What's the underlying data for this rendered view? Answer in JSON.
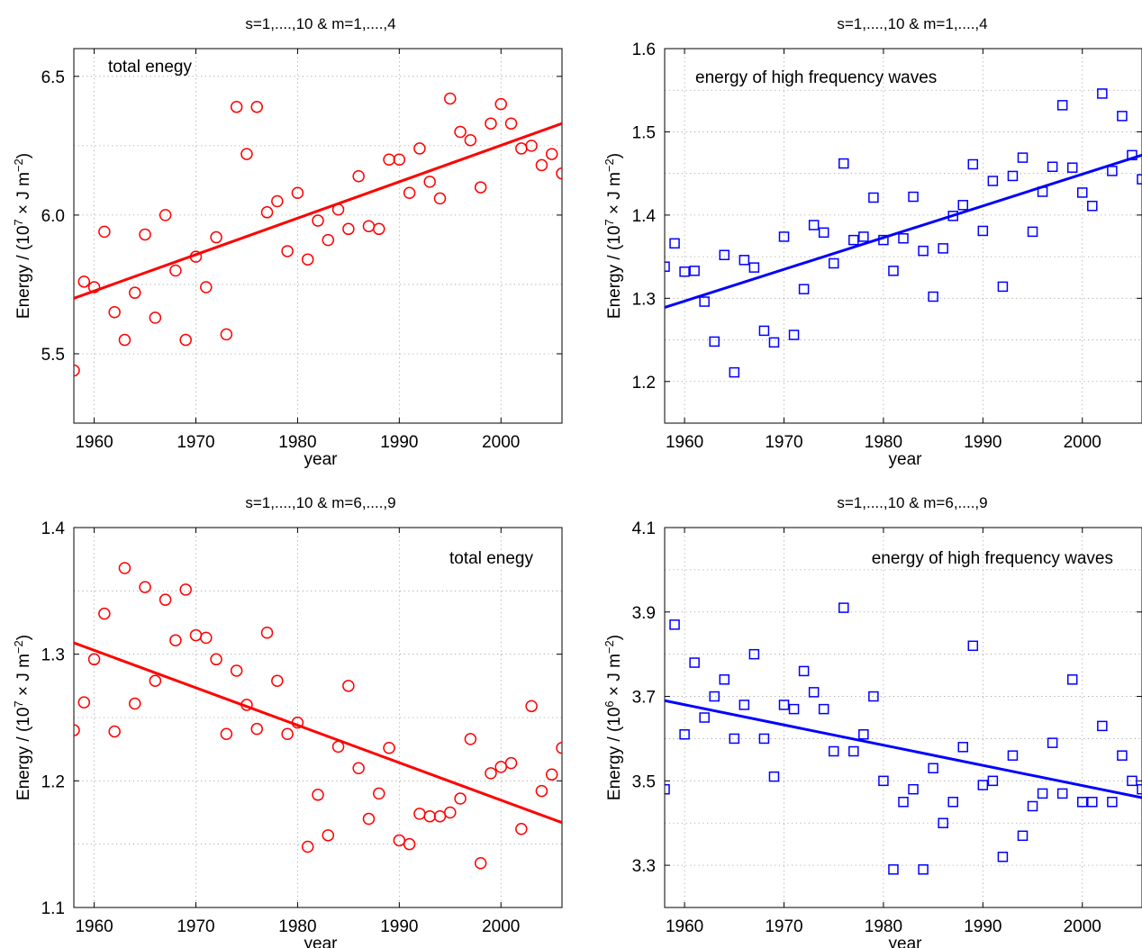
{
  "chart_data": [
    {
      "type": "scatter",
      "title": "s=1,....,10  &  m=1,....,4",
      "annotation": "total enegy",
      "xlabel": "year",
      "ylabel_prefix": "Energy / (10",
      "ylabel_exp": "7",
      "ylabel_unit": " × J m",
      "ylabel_unit_exp": "−2",
      "ylabel_suffix": ")",
      "xlim": [
        1958,
        2006
      ],
      "ylim": [
        5.25,
        6.6
      ],
      "xticks": [
        1960,
        1970,
        1980,
        1990,
        2000
      ],
      "yticks": [
        5.5,
        6.0,
        6.5
      ],
      "ytick_labels": [
        "5.5",
        "6.0",
        "6.5"
      ],
      "ygrid_minor": [
        5.75,
        6.25
      ],
      "grid": true,
      "marker": "circle",
      "color": "#ff0000",
      "annotation_anchor": "top-left",
      "x": [
        1958,
        1959,
        1960,
        1961,
        1962,
        1963,
        1964,
        1965,
        1966,
        1967,
        1968,
        1969,
        1970,
        1971,
        1972,
        1973,
        1974,
        1975,
        1976,
        1977,
        1978,
        1979,
        1980,
        1981,
        1982,
        1983,
        1984,
        1985,
        1986,
        1987,
        1988,
        1989,
        1990,
        1991,
        1992,
        1993,
        1994,
        1995,
        1996,
        1997,
        1998,
        1999,
        2000,
        2001,
        2002,
        2003,
        2004,
        2005,
        2006
      ],
      "y": [
        5.44,
        5.76,
        5.74,
        5.94,
        5.65,
        5.55,
        5.72,
        5.93,
        5.63,
        6.0,
        5.8,
        5.55,
        5.85,
        5.74,
        5.92,
        5.57,
        6.39,
        6.22,
        6.39,
        6.01,
        6.05,
        5.87,
        6.08,
        5.84,
        5.98,
        5.91,
        6.02,
        5.95,
        6.14,
        5.96,
        5.95,
        6.2,
        6.2,
        6.08,
        6.24,
        6.12,
        6.06,
        6.42,
        6.3,
        6.27,
        6.1,
        6.33,
        6.4,
        6.33,
        6.24,
        6.25,
        6.18,
        6.22,
        6.15
      ],
      "trend": {
        "x": [
          1958,
          2006
        ],
        "y": [
          5.7,
          6.33
        ]
      }
    },
    {
      "type": "scatter",
      "title": "s=1,....,10  &  m=1,....,4",
      "annotation": "energy of high frequency waves",
      "xlabel": "year",
      "ylabel_prefix": "Energy / (10",
      "ylabel_exp": "7",
      "ylabel_unit": " × J m",
      "ylabel_unit_exp": "−2",
      "ylabel_suffix": ")",
      "xlim": [
        1958,
        2006
      ],
      "ylim": [
        1.15,
        1.6
      ],
      "xticks": [
        1960,
        1970,
        1980,
        1990,
        2000
      ],
      "yticks": [
        1.2,
        1.3,
        1.4,
        1.5,
        1.6
      ],
      "ytick_labels": [
        "1.2",
        "1.3",
        "1.4",
        "1.5",
        "1.6"
      ],
      "ygrid_minor": [
        1.25,
        1.35,
        1.45,
        1.55
      ],
      "grid": true,
      "marker": "square",
      "color": "#0000ff",
      "annotation_anchor": "top-left",
      "x": [
        1958,
        1959,
        1960,
        1961,
        1962,
        1963,
        1964,
        1965,
        1966,
        1967,
        1968,
        1969,
        1970,
        1971,
        1972,
        1973,
        1974,
        1975,
        1976,
        1977,
        1978,
        1979,
        1980,
        1981,
        1982,
        1983,
        1984,
        1985,
        1986,
        1987,
        1988,
        1989,
        1990,
        1991,
        1992,
        1993,
        1994,
        1995,
        1996,
        1997,
        1998,
        1999,
        2000,
        2001,
        2002,
        2003,
        2004,
        2005,
        2006
      ],
      "y": [
        1.338,
        1.366,
        1.332,
        1.333,
        1.296,
        1.248,
        1.352,
        1.211,
        1.346,
        1.337,
        1.261,
        1.247,
        1.374,
        1.256,
        1.311,
        1.388,
        1.379,
        1.342,
        1.462,
        1.37,
        1.374,
        1.421,
        1.37,
        1.333,
        1.372,
        1.422,
        1.357,
        1.302,
        1.36,
        1.399,
        1.412,
        1.461,
        1.381,
        1.441,
        1.314,
        1.447,
        1.469,
        1.38,
        1.428,
        1.458,
        1.532,
        1.457,
        1.427,
        1.411,
        1.546,
        1.453,
        1.519,
        1.472,
        1.443
      ],
      "trend": {
        "x": [
          1958,
          2006
        ],
        "y": [
          1.289,
          1.472
        ]
      }
    },
    {
      "type": "scatter",
      "title": "s=1,....,10  &  m=6,....,9",
      "annotation": "total enegy",
      "xlabel": "year",
      "ylabel_prefix": "Energy / (10",
      "ylabel_exp": "7",
      "ylabel_unit": " × J m",
      "ylabel_unit_exp": "−2",
      "ylabel_suffix": ")",
      "xlim": [
        1958,
        2006
      ],
      "ylim": [
        1.1,
        1.4
      ],
      "xticks": [
        1960,
        1970,
        1980,
        1990,
        2000
      ],
      "yticks": [
        1.1,
        1.2,
        1.3,
        1.4
      ],
      "ytick_labels": [
        "1.1",
        "1.2",
        "1.3",
        "1.4"
      ],
      "ygrid_minor": [
        1.15,
        1.25,
        1.35
      ],
      "grid": true,
      "marker": "circle",
      "color": "#ff0000",
      "annotation_anchor": "top-right",
      "x": [
        1958,
        1959,
        1960,
        1961,
        1962,
        1963,
        1964,
        1965,
        1966,
        1967,
        1968,
        1969,
        1970,
        1971,
        1972,
        1973,
        1974,
        1975,
        1976,
        1977,
        1978,
        1979,
        1980,
        1981,
        1982,
        1983,
        1984,
        1985,
        1986,
        1987,
        1988,
        1989,
        1990,
        1991,
        1992,
        1993,
        1994,
        1995,
        1996,
        1997,
        1998,
        1999,
        2000,
        2001,
        2002,
        2003,
        2004,
        2005,
        2006
      ],
      "y": [
        1.24,
        1.262,
        1.296,
        1.332,
        1.239,
        1.368,
        1.261,
        1.353,
        1.279,
        1.343,
        1.311,
        1.351,
        1.315,
        1.313,
        1.296,
        1.237,
        1.287,
        1.26,
        1.241,
        1.317,
        1.279,
        1.237,
        1.246,
        1.148,
        1.189,
        1.157,
        1.227,
        1.275,
        1.21,
        1.17,
        1.19,
        1.226,
        1.153,
        1.15,
        1.174,
        1.172,
        1.172,
        1.175,
        1.186,
        1.233,
        1.135,
        1.206,
        1.211,
        1.214,
        1.162,
        1.259,
        1.192,
        1.205,
        1.226
      ],
      "trend": {
        "x": [
          1958,
          2006
        ],
        "y": [
          1.309,
          1.167
        ]
      }
    },
    {
      "type": "scatter",
      "title": "s=1,....,10  &  m=6,....,9",
      "annotation": "energy of high frequency waves",
      "xlabel": "year",
      "ylabel_prefix": "Energy / (10",
      "ylabel_exp": "6",
      "ylabel_unit": " × J m",
      "ylabel_unit_exp": "−2",
      "ylabel_suffix": ")",
      "xlim": [
        1958,
        2006
      ],
      "ylim": [
        3.2,
        4.1
      ],
      "xticks": [
        1960,
        1970,
        1980,
        1990,
        2000
      ],
      "yticks": [
        3.3,
        3.5,
        3.7,
        3.9,
        4.1
      ],
      "ytick_labels": [
        "3.3",
        "3.5",
        "3.7",
        "3.9",
        "4.1"
      ],
      "ygrid_minor": [
        3.2,
        3.4,
        3.6,
        3.8,
        4.0
      ],
      "grid": true,
      "marker": "square",
      "color": "#0000ff",
      "annotation_anchor": "top-right",
      "x": [
        1958,
        1959,
        1960,
        1961,
        1962,
        1963,
        1964,
        1965,
        1966,
        1967,
        1968,
        1969,
        1970,
        1971,
        1972,
        1973,
        1974,
        1975,
        1976,
        1977,
        1978,
        1979,
        1980,
        1981,
        1982,
        1983,
        1984,
        1985,
        1986,
        1987,
        1988,
        1989,
        1990,
        1991,
        1992,
        1993,
        1994,
        1995,
        1996,
        1997,
        1998,
        1999,
        2000,
        2001,
        2002,
        2003,
        2004,
        2005,
        2006
      ],
      "y": [
        3.48,
        3.87,
        3.61,
        3.78,
        3.65,
        3.7,
        3.74,
        3.6,
        3.68,
        3.8,
        3.6,
        3.51,
        3.68,
        3.67,
        3.76,
        3.71,
        3.67,
        3.57,
        3.91,
        3.57,
        3.61,
        3.7,
        3.5,
        3.29,
        3.45,
        3.48,
        3.29,
        3.53,
        3.4,
        3.45,
        3.58,
        3.82,
        3.49,
        3.5,
        3.32,
        3.56,
        3.37,
        3.44,
        3.47,
        3.59,
        3.47,
        3.74,
        3.45,
        3.45,
        3.63,
        3.45,
        3.56,
        3.5,
        3.48
      ],
      "trend": {
        "x": [
          1958,
          2006
        ],
        "y": [
          3.69,
          3.46
        ]
      }
    }
  ]
}
